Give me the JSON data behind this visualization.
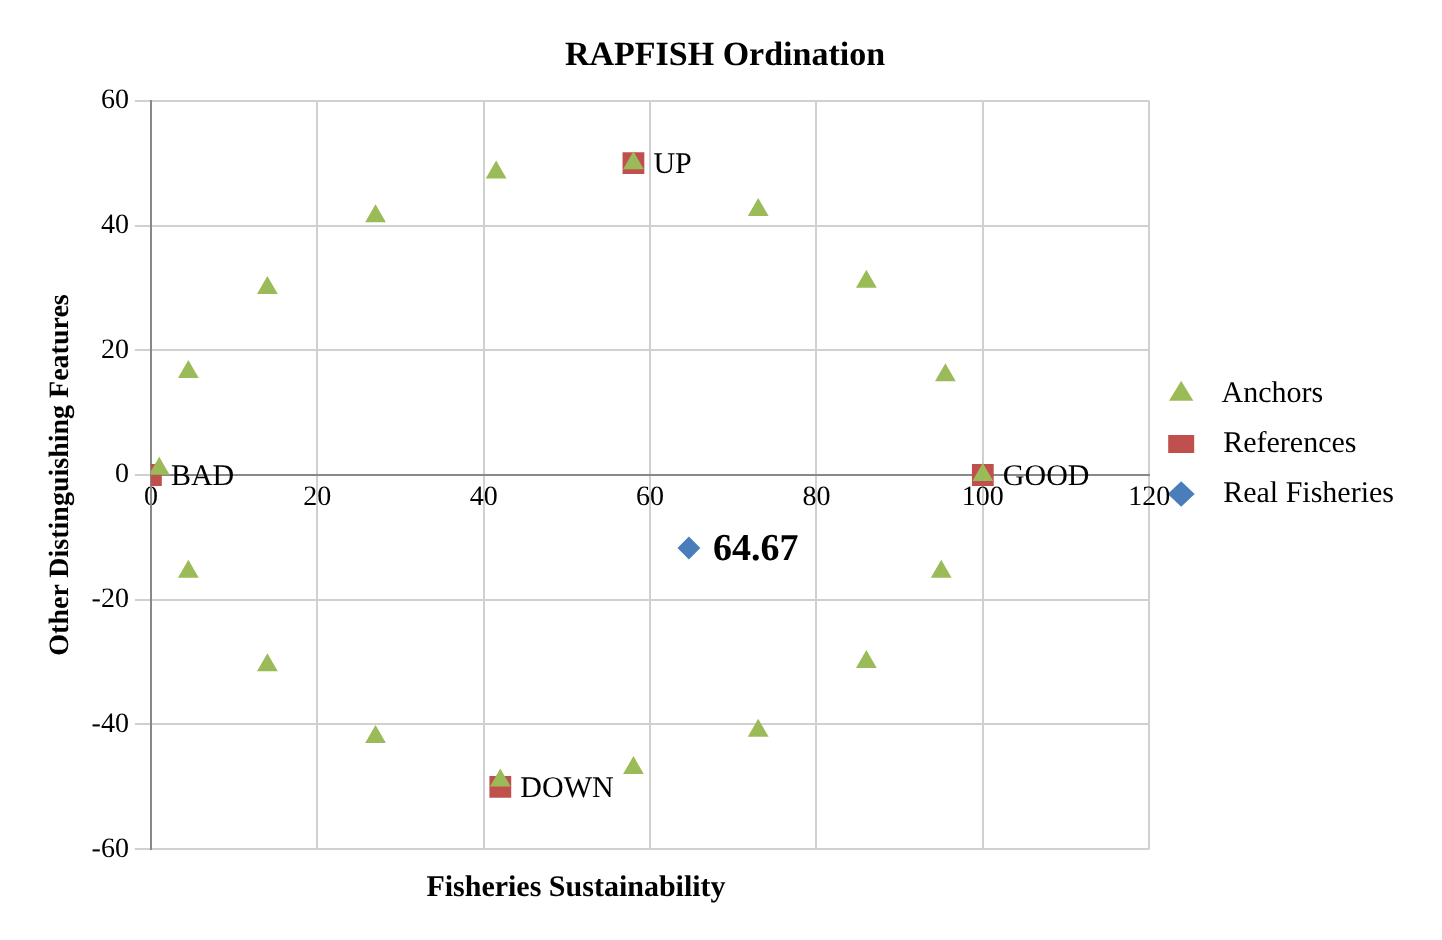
{
  "chart_data": {
    "type": "scatter",
    "title": "RAPFISH Ordination",
    "xlabel": "Fisheries Sustainability",
    "ylabel": "Other Distinguishing Features",
    "xlim": [
      0,
      120
    ],
    "xticks": [
      0,
      20,
      40,
      60,
      80,
      100,
      120
    ],
    "ylim": [
      -60,
      60
    ],
    "yticks": [
      -60,
      -40,
      -20,
      0,
      20,
      40,
      60
    ],
    "grid": true,
    "legend": "right",
    "series": [
      {
        "name": "Real Fisheries",
        "color": "#4a7ebb",
        "marker": "diamond",
        "x": [
          64.67
        ],
        "values": [
          -11.7
        ]
      },
      {
        "name": "References",
        "color": "#c0504d",
        "marker": "square",
        "x": [
          0,
          100,
          58,
          42
        ],
        "values": [
          0,
          0,
          50,
          -50
        ]
      },
      {
        "name": "Anchors",
        "color": "#9bbb59",
        "marker": "triangle",
        "x": [
          1,
          4.5,
          14,
          27,
          41.5,
          58,
          73,
          86,
          95.5,
          100,
          95,
          86,
          73,
          58,
          42,
          27,
          14,
          4.5
        ],
        "values": [
          1,
          16.5,
          30,
          41.5,
          48.5,
          50,
          42.5,
          31,
          16,
          0,
          -15.5,
          -30,
          -41,
          -47,
          -49,
          -42,
          -30.5,
          -15.5
        ]
      }
    ],
    "annotations": [
      {
        "text": "BAD",
        "x": 0,
        "y": 0
      },
      {
        "text": "GOOD",
        "x": 100,
        "y": 0
      },
      {
        "text": "UP",
        "x": 58,
        "y": 50
      },
      {
        "text": "DOWN",
        "x": 42,
        "y": -50
      },
      {
        "text": "64.67",
        "x": 64.67,
        "y": -11.7
      }
    ]
  }
}
